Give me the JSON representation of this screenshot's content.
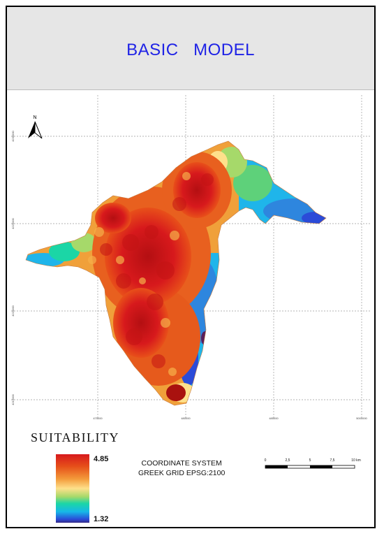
{
  "title": "BASIC   MODEL",
  "north_arrow": {
    "label": "N",
    "icon": "north-arrow-icon"
  },
  "map": {
    "x_ticks": [
      "475000",
      "480000",
      "485000",
      "5000000"
    ],
    "y_ticks": [
      "4230000",
      "4225000",
      "4220000",
      "4215000"
    ],
    "colors": {
      "high": "#d7191c",
      "mid": "#fee08b",
      "low": "#2b4bd8"
    }
  },
  "legend": {
    "title": "SUITABILITY",
    "max_value": "4.85",
    "min_value": "1.32"
  },
  "coordinate_system": {
    "line1": "COORDINATE SYSTEM",
    "line2": "GREEK GRID EPSG:2100"
  },
  "scale_bar": {
    "labels": [
      "0",
      "2,5",
      "5",
      "7,5",
      "10 km"
    ]
  }
}
